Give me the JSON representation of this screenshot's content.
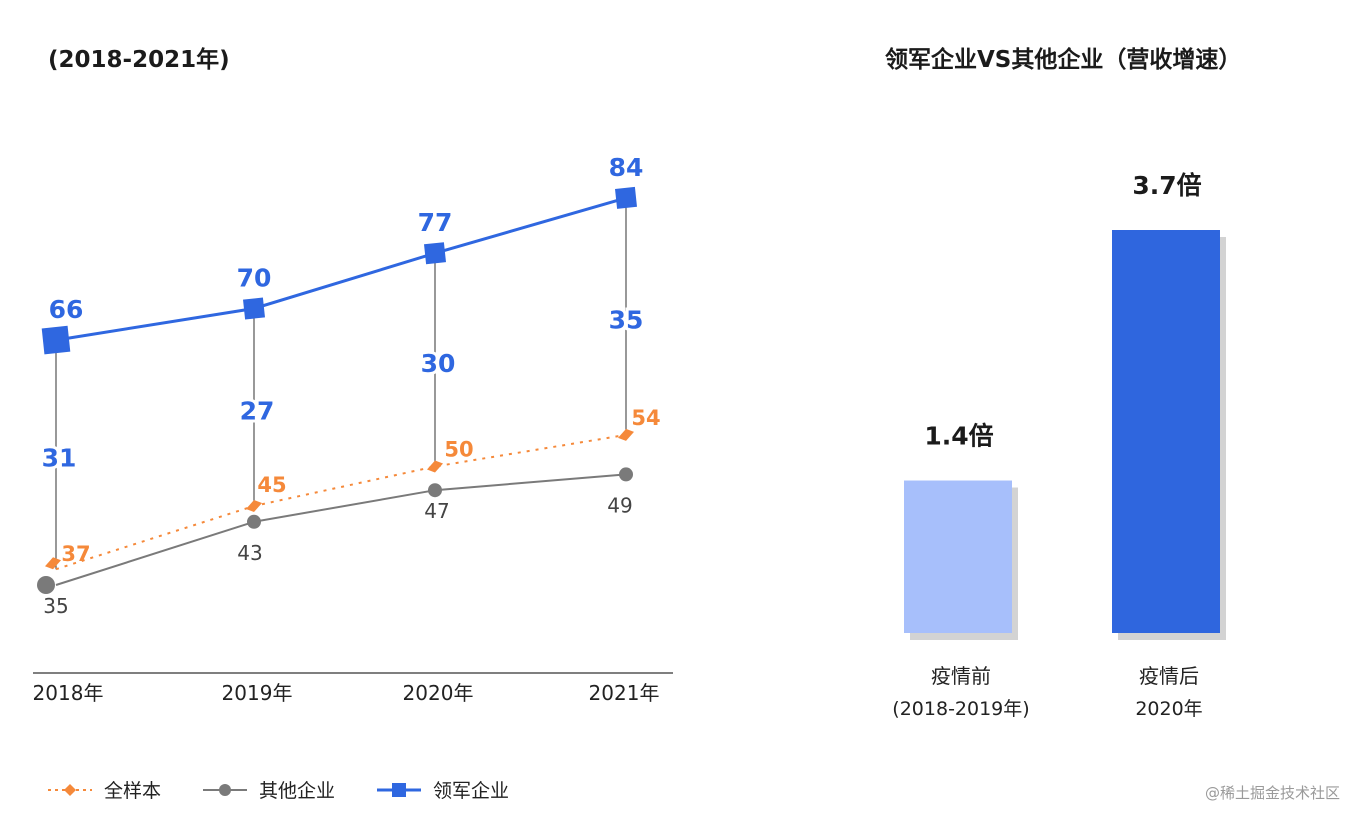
{
  "left_title": "(2018-2021年)",
  "right_title": "领军企业VS其他企业（营收增速）",
  "legend": {
    "all": "全样本",
    "others": "其他企业",
    "leaders": "领军企业"
  },
  "watermark": "@稀土掘金技术社区",
  "colors": {
    "leaders": "#2f67e0",
    "all": "#f5893a",
    "others": "#7a7a7a",
    "bar_before": "#a7bffb",
    "bar_after": "#2f66de"
  },
  "chart_data": [
    {
      "type": "line",
      "title": "(2018-2021年)",
      "categories": [
        "2018年",
        "2019年",
        "2020年",
        "2021年"
      ],
      "ylim": [
        30,
        90
      ],
      "series": [
        {
          "name": "领军企业",
          "values": [
            66,
            70,
            77,
            84
          ]
        },
        {
          "name": "全样本",
          "values": [
            37,
            45,
            50,
            54
          ]
        },
        {
          "name": "其他企业",
          "values": [
            35,
            43,
            47,
            49
          ]
        }
      ],
      "gap_labels": [
        31,
        27,
        30,
        35
      ],
      "legend_position": "bottom-left"
    },
    {
      "type": "bar",
      "title": "领军企业VS其他企业（营收增速）",
      "categories": [
        "疫情前",
        "疫情后"
      ],
      "sublabels": [
        "(2018-2019年)",
        "2020年"
      ],
      "values": [
        1.4,
        3.7
      ],
      "value_labels": [
        "1.4倍",
        "3.7倍"
      ]
    }
  ]
}
